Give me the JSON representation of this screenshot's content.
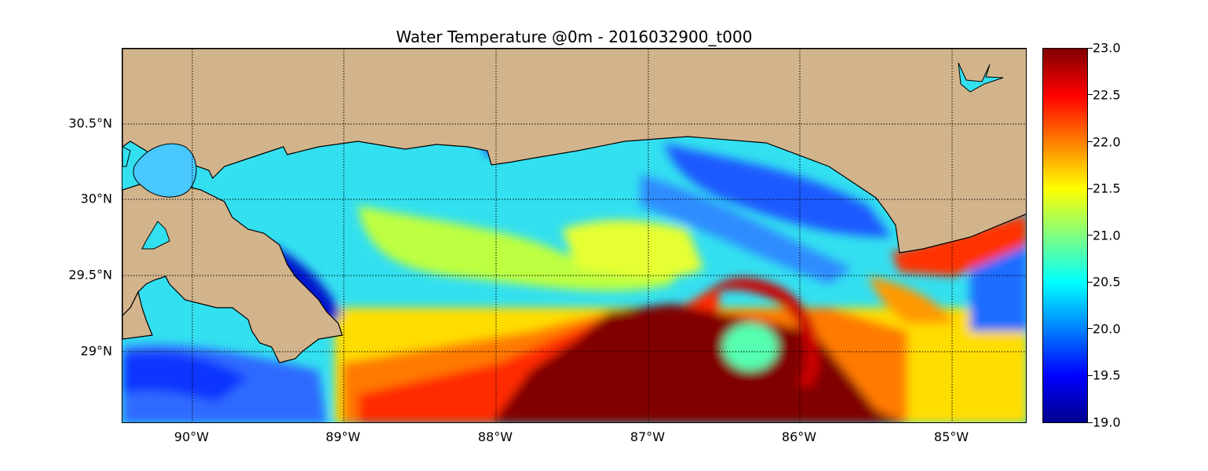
{
  "map": {
    "title": "Water Temperature @0m - 2016032900_t000",
    "variable": "Water Temperature",
    "depth": "0m",
    "timestamp": "2016032900_t000",
    "lat_range": [
      28.53,
      31.0
    ],
    "lon_range": [
      -90.47,
      -84.5
    ],
    "grid": "on",
    "latitude_labels": [
      "30.5°N",
      "30°N",
      "29.5°N",
      "29°N"
    ],
    "longitude_labels": [
      "90°W",
      "89°W",
      "88°W",
      "87°W",
      "86°W",
      "85°W"
    ],
    "land_color": "#d2b48c",
    "colormap": "jet"
  },
  "colorbar": {
    "min": 19.0,
    "max": 23.0,
    "tick_labels": [
      "23.0",
      "22.5",
      "22.0",
      "21.5",
      "21.0",
      "20.5",
      "20.0",
      "19.5",
      "19.0"
    ]
  }
}
